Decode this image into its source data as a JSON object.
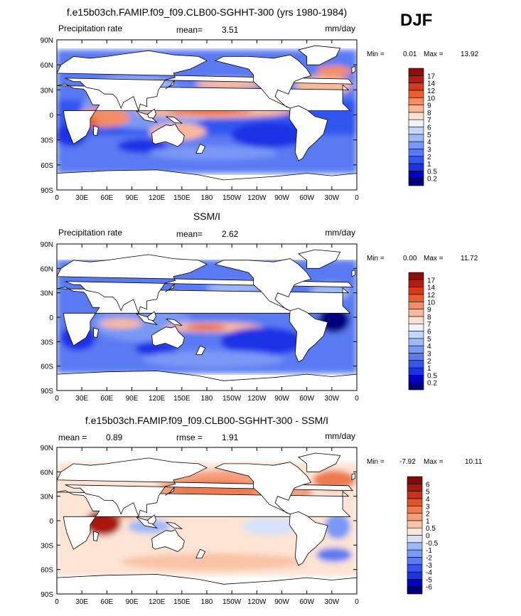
{
  "figure": {
    "season": "DJF",
    "units": "mm/day",
    "colors": {
      "ocean_light": "#9ec3f3",
      "land": "#ffffff",
      "frame": "#000000"
    }
  },
  "chart_data": [
    {
      "type": "heatmap",
      "title": "f.e15b03ch.FAMIP.f09_f09.CLB00-SGHHT-300 (yrs 1980-1984)",
      "left_label": "Precipitation rate",
      "right_label": "mm/day",
      "stats": [
        {
          "label": "mean=",
          "value": "3.51"
        }
      ],
      "min_label": "Min =",
      "min": "0.01",
      "max_label": "Max =",
      "max": "13.92",
      "x_ticks": [
        "0",
        "30E",
        "60E",
        "90E",
        "120E",
        "150E",
        "180",
        "150W",
        "120W",
        "90W",
        "60W",
        "30W",
        "0"
      ],
      "y_ticks": [
        "90N",
        "60N",
        "30N",
        "0",
        "30S",
        "60S",
        "90S"
      ],
      "xlim": [
        0,
        360
      ],
      "ylim": [
        -90,
        90
      ],
      "colorbar": {
        "levels": [
          "0.2",
          "0.5",
          "1",
          "2",
          "3",
          "4",
          "5",
          "6",
          "7",
          "8",
          "9",
          "10",
          "12",
          "14",
          "17"
        ],
        "colors": [
          "#00007f",
          "#0000c8",
          "#1a33e6",
          "#3355f0",
          "#5a7af3",
          "#7a98f6",
          "#9fb8f8",
          "#c6d6fb",
          "#eef3ff",
          "#fde0cf",
          "#f9b99a",
          "#f48d66",
          "#e9602f",
          "#d73a1a",
          "#b21e14",
          "#8a0f0a"
        ]
      }
    },
    {
      "type": "heatmap",
      "title": "SSM/I",
      "left_label": "Precipitation rate",
      "right_label": "mm/day",
      "stats": [
        {
          "label": "mean=",
          "value": "2.62"
        }
      ],
      "min_label": "Min =",
      "min": "0.00",
      "max_label": "Max =",
      "max": "11.72",
      "x_ticks": [
        "0",
        "30E",
        "60E",
        "90E",
        "120E",
        "150E",
        "180",
        "150W",
        "120W",
        "90W",
        "60W",
        "30W",
        "0"
      ],
      "y_ticks": [
        "90N",
        "60N",
        "30N",
        "0",
        "30S",
        "60S",
        "90S"
      ],
      "xlim": [
        0,
        360
      ],
      "ylim": [
        -90,
        90
      ],
      "colorbar": {
        "levels": [
          "0.2",
          "0.5",
          "1",
          "2",
          "3",
          "4",
          "5",
          "6",
          "7",
          "8",
          "9",
          "10",
          "12",
          "14",
          "17"
        ],
        "colors": [
          "#00007f",
          "#0000c8",
          "#1a33e6",
          "#3355f0",
          "#5a7af3",
          "#7a98f6",
          "#9fb8f8",
          "#c6d6fb",
          "#eef3ff",
          "#fde0cf",
          "#f9b99a",
          "#f48d66",
          "#e9602f",
          "#d73a1a",
          "#b21e14",
          "#8a0f0a"
        ]
      }
    },
    {
      "type": "heatmap",
      "title": "f.e15b03ch.FAMIP.f09_f09.CLB00-SGHHT-300 - SSM/I",
      "left_label": "",
      "right_label": "mm/day",
      "stats": [
        {
          "label": "mean =",
          "value": "0.89"
        },
        {
          "label": "rmse =",
          "value": "1.91"
        }
      ],
      "min_label": "Min =",
      "min": "-7.92",
      "max_label": "Max =",
      "max": "10.11",
      "x_ticks": [
        "0",
        "30E",
        "60E",
        "90E",
        "120E",
        "150E",
        "180",
        "150W",
        "120W",
        "90W",
        "60W",
        "30W",
        "0"
      ],
      "y_ticks": [
        "90N",
        "60N",
        "30N",
        "0",
        "30S",
        "60S",
        "90S"
      ],
      "xlim": [
        0,
        360
      ],
      "ylim": [
        -90,
        90
      ],
      "colorbar": {
        "levels": [
          "-6",
          "-5",
          "-4",
          "-3",
          "-2",
          "-1",
          "-0.5",
          "0",
          "0.5",
          "1",
          "2",
          "3",
          "4",
          "5",
          "6"
        ],
        "colors": [
          "#00007f",
          "#0000c8",
          "#1a33e6",
          "#3355f0",
          "#5a7af3",
          "#7a98f6",
          "#9fb8f8",
          "#d6e2fb",
          "#fde4d4",
          "#f9c3a6",
          "#f59f7a",
          "#ee7a50",
          "#e0542c",
          "#cc3019",
          "#a9180f",
          "#7f0a07"
        ]
      }
    }
  ]
}
